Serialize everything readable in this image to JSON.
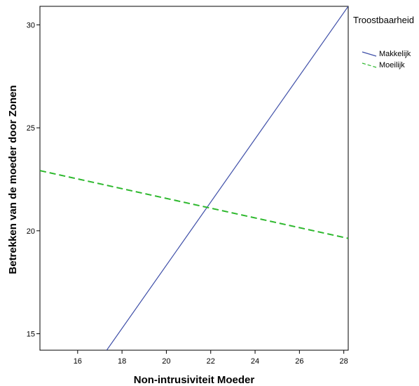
{
  "chart_data": {
    "type": "line",
    "xlabel": "Non-intrusiviteit Moeder",
    "ylabel": "Betrekken van de moeder door Zonen",
    "xlim": [
      14.3,
      28.2
    ],
    "ylim": [
      14.2,
      30.9
    ],
    "xticks": [
      16,
      18,
      20,
      22,
      24,
      26,
      28
    ],
    "yticks": [
      15,
      20,
      25,
      30
    ],
    "grid": false,
    "legend": {
      "title": "Troostbaarheid",
      "placement": "right"
    },
    "series": [
      {
        "name": "Makkelijk",
        "color": "#3f4fa8",
        "style": "solid",
        "x": [
          17.31,
          28.2
        ],
        "y": [
          14.2,
          30.9
        ]
      },
      {
        "name": "Moeilijk",
        "color": "#2db82d",
        "style": "dashed",
        "x": [
          14.3,
          28.2
        ],
        "y": [
          22.92,
          19.63
        ]
      }
    ]
  }
}
